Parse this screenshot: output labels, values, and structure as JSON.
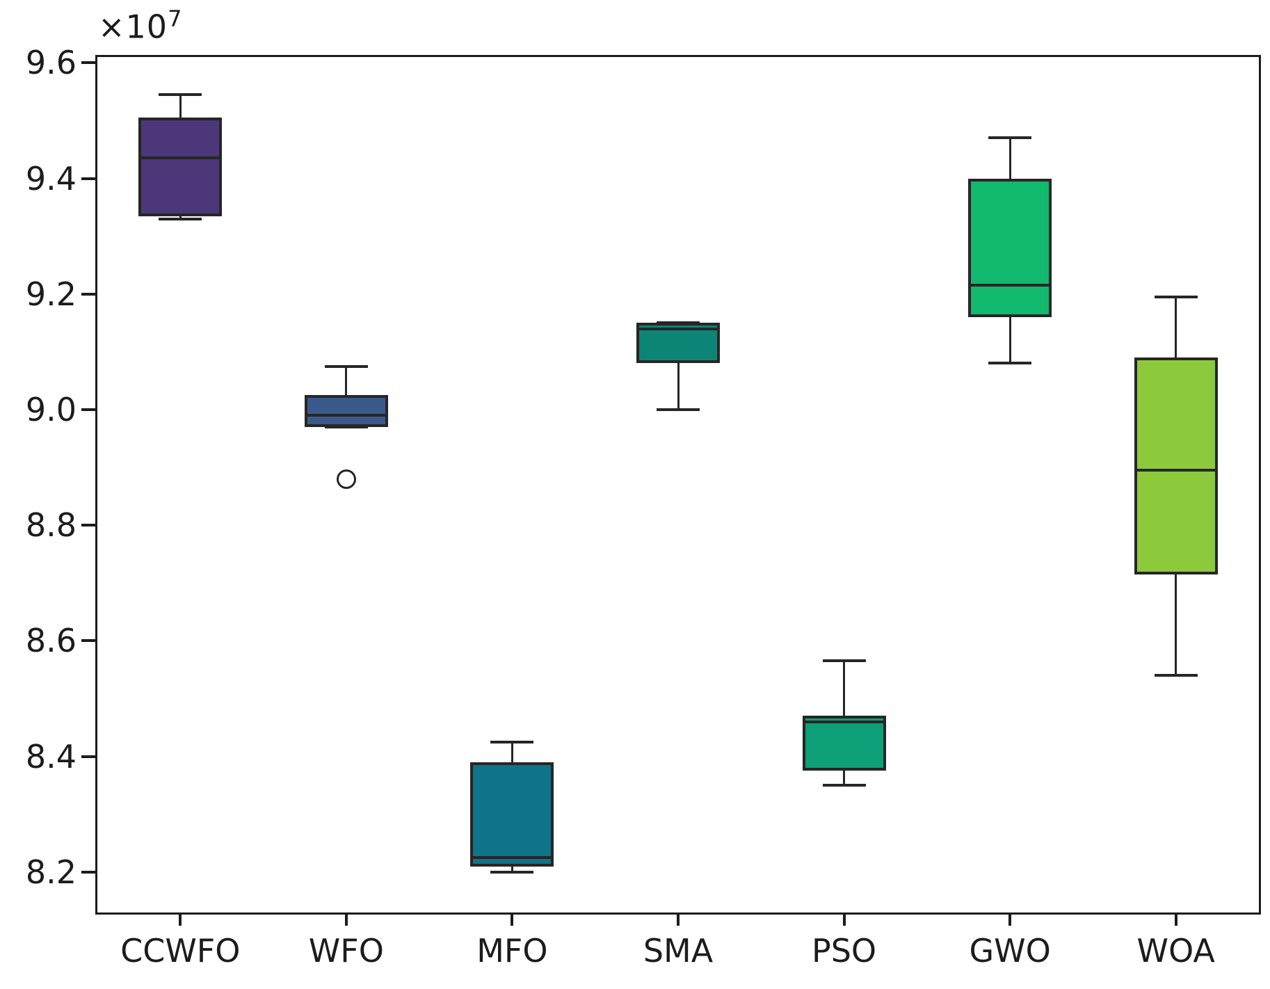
{
  "figure": {
    "offset_base": "×10",
    "offset_exp": "7",
    "background_color": "#ffffff",
    "axis_color": "#1c1c1c",
    "box_line_color": "#262626"
  },
  "chart_data": {
    "type": "boxplot",
    "title": "",
    "xlabel": "",
    "ylabel": "",
    "y_unit_multiplier": "×10⁷",
    "grid": false,
    "legend": "none",
    "categories": [
      "CCWFO",
      "WFO",
      "MFO",
      "SMA",
      "PSO",
      "GWO",
      "WOA"
    ],
    "ylim": [
      8.13,
      9.61
    ],
    "yticks": [
      8.2,
      8.4,
      8.6,
      8.8,
      9.0,
      9.2,
      9.4,
      9.6
    ],
    "ytick_labels": [
      "8.2",
      "8.4",
      "8.6",
      "8.8",
      "9.0",
      "9.2",
      "9.4",
      "9.6"
    ],
    "series": [
      {
        "name": "CCWFO",
        "color": "#4b3779",
        "whislo": 9.33,
        "q1": 9.335,
        "med": 9.435,
        "q3": 9.505,
        "whishi": 9.545,
        "fliers": []
      },
      {
        "name": "WFO",
        "color": "#3a5a8c",
        "whislo": 8.97,
        "q1": 8.97,
        "med": 8.99,
        "q3": 9.025,
        "whishi": 9.075,
        "fliers": [
          8.88
        ]
      },
      {
        "name": "MFO",
        "color": "#0f7389",
        "whislo": 8.2,
        "q1": 8.21,
        "med": 8.225,
        "q3": 8.39,
        "whishi": 8.425,
        "fliers": []
      },
      {
        "name": "SMA",
        "color": "#0c8577",
        "whislo": 9.0,
        "q1": 9.08,
        "med": 9.14,
        "q3": 9.15,
        "whishi": 9.15,
        "fliers": []
      },
      {
        "name": "PSO",
        "color": "#0da077",
        "whislo": 8.35,
        "q1": 8.375,
        "med": 8.46,
        "q3": 8.47,
        "whishi": 8.565,
        "fliers": []
      },
      {
        "name": "GWO",
        "color": "#10b96d",
        "whislo": 9.08,
        "q1": 9.16,
        "med": 9.215,
        "q3": 9.4,
        "whishi": 9.47,
        "fliers": []
      },
      {
        "name": "WOA",
        "color": "#8cca3b",
        "whislo": 8.54,
        "q1": 8.715,
        "med": 8.895,
        "q3": 9.09,
        "whishi": 9.195,
        "fliers": []
      }
    ]
  }
}
